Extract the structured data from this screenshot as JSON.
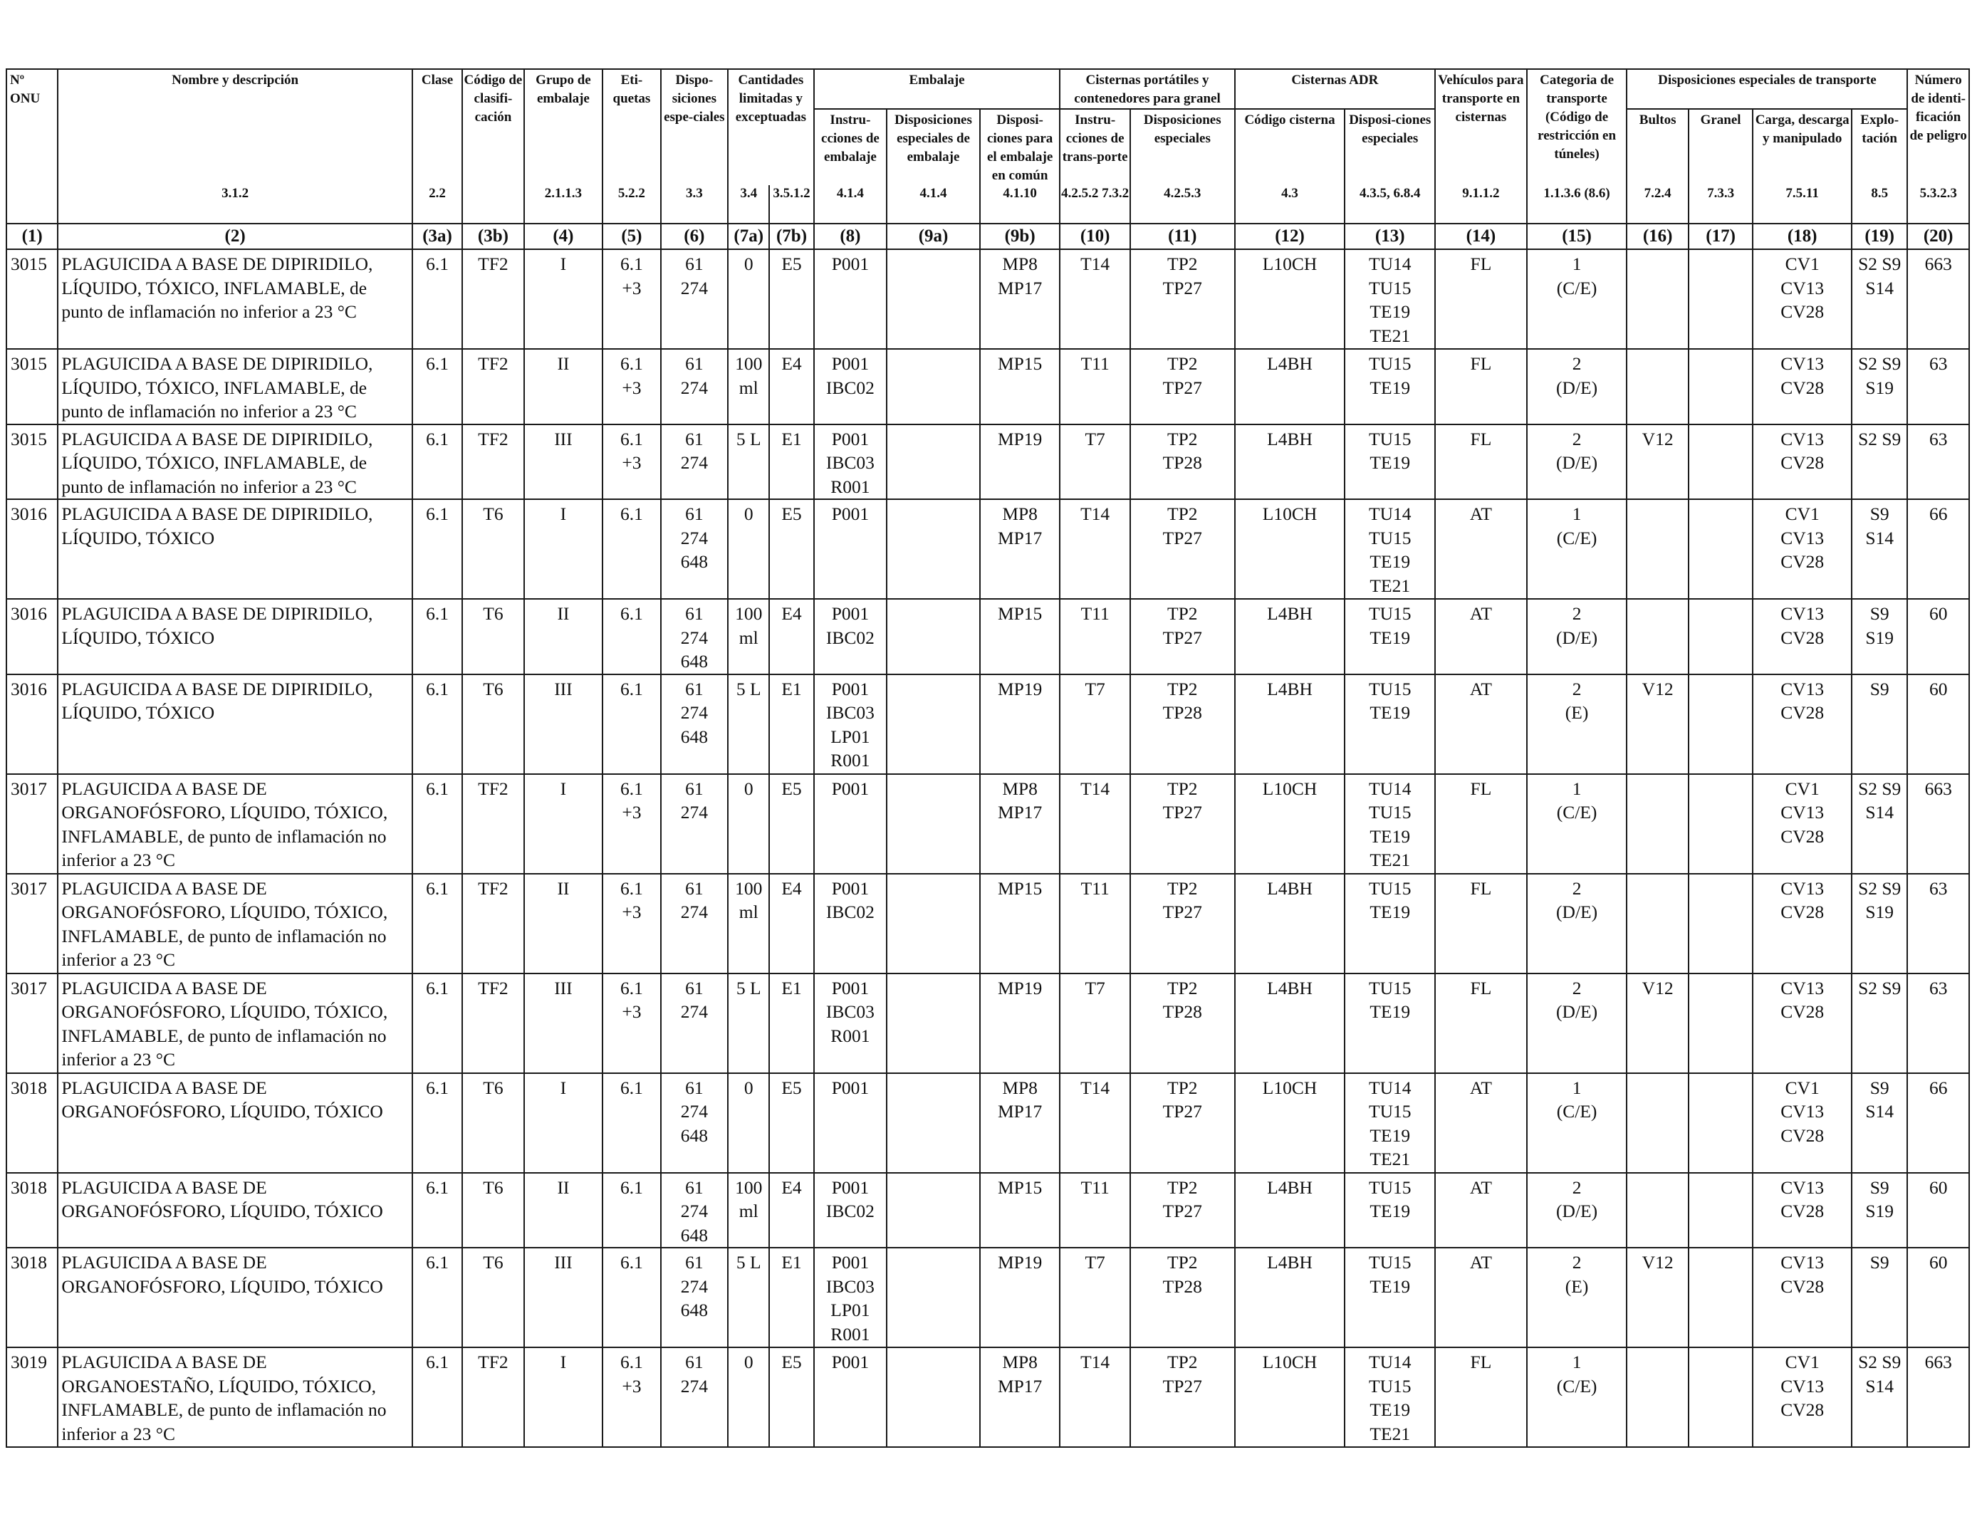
{
  "headers": {
    "onu": "Nº ONU",
    "name": "Nombre y descripción",
    "clase": "Clase",
    "codigo": "Código de clasifi-cación",
    "grupo": "Grupo de embalaje",
    "etiquetas": "Eti-quetas",
    "disposiciones": "Dispo-siciones espe-ciales",
    "cantidades": "Cantidades limitadas y exceptuadas",
    "embalaje": "Embalaje",
    "instrucciones": "Instru-cciones de embalaje",
    "disp_esp_emb": "Disposiciones especiales de embalaje",
    "disp_comun": "Disposi-ciones para el embalaje en común",
    "cisternas_port": "Cisternas portátiles y contenedores para granel",
    "instr_transporte": "Instru-cciones de trans-porte",
    "disp_esp": "Disposiciones especiales",
    "cisternas_adr": "Cisternas ADR",
    "codigo_cisterna": "Código cisterna",
    "disp_cist": "Disposi-ciones especiales",
    "vehiculos": "Vehículos para transporte en cisternas",
    "categoria": "Categoria de transporte (Código de restricción en túneles)",
    "disp_transp": "Disposiciones especiales de transporte",
    "bultos": "Bultos",
    "granel": "Granel",
    "carga": "Carga, descarga y manipulado",
    "explotacion": "Explo-tación",
    "numero": "Número de identi-ficación de peligro"
  },
  "refs": {
    "name": "3.1.2",
    "clase": "2.2",
    "grupo": "2.1.1.3",
    "etiquetas": "5.2.2",
    "disposiciones": "3.3",
    "cant_a": "3.4",
    "cant_b": "3.5.1.2",
    "instr": "4.1.4",
    "disp_esp_emb": "4.1.4",
    "disp_comun": "4.1.10",
    "instr_transp": "4.2.5.2 7.3.2",
    "disp_esp": "4.2.5.3",
    "codigo_cisterna": "4.3",
    "disp_cist": "4.3.5, 6.8.4",
    "vehiculos": "9.1.1.2",
    "categoria": "1.1.3.6 (8.6)",
    "bultos": "7.2.4",
    "granel": "7.3.3",
    "carga": "7.5.11",
    "explotacion": "8.5",
    "numero": "5.3.2.3"
  },
  "column_numbers": [
    "(1)",
    "(2)",
    "(3a)",
    "(3b)",
    "(4)",
    "(5)",
    "(6)",
    "(7a)",
    "(7b)",
    "(8)",
    "(9a)",
    "(9b)",
    "(10)",
    "(11)",
    "(12)",
    "(13)",
    "(14)",
    "(15)",
    "(16)",
    "(17)",
    "(18)",
    "(19)",
    "(20)"
  ],
  "rows": [
    [
      "3015",
      "PLAGUICIDA A BASE DE DIPIRIDILO, LÍQUIDO, TÓXICO, INFLAMABLE, de punto de inflamación no inferior a 23 °C",
      "6.1",
      "TF2",
      "I",
      "6.1\n+3",
      "61\n274",
      "0",
      "E5",
      "P001",
      "",
      "MP8\nMP17",
      "T14",
      "TP2\nTP27",
      "L10CH",
      "TU14\nTU15\nTE19\nTE21",
      "FL",
      "1\n(C/E)",
      "",
      "",
      "CV1\nCV13\nCV28",
      "S2 S9\nS14",
      "663"
    ],
    [
      "3015",
      "PLAGUICIDA A BASE DE DIPIRIDILO, LÍQUIDO, TÓXICO, INFLAMABLE, de punto de inflamación no inferior a 23 °C",
      "6.1",
      "TF2",
      "II",
      "6.1\n+3",
      "61\n274",
      "100\nml",
      "E4",
      "P001\nIBC02",
      "",
      "MP15",
      "T11",
      "TP2\nTP27",
      "L4BH",
      "TU15\nTE19",
      "FL",
      "2\n(D/E)",
      "",
      "",
      "CV13\nCV28",
      "S2 S9\nS19",
      "63"
    ],
    [
      "3015",
      "PLAGUICIDA A BASE DE DIPIRIDILO, LÍQUIDO, TÓXICO, INFLAMABLE, de punto de inflamación no inferior a 23 °C",
      "6.1",
      "TF2",
      "III",
      "6.1\n+3",
      "61\n274",
      "5 L",
      "E1",
      "P001\nIBC03\nR001",
      "",
      "MP19",
      "T7",
      "TP2\nTP28",
      "L4BH",
      "TU15\nTE19",
      "FL",
      "2\n(D/E)",
      "V12",
      "",
      "CV13\nCV28",
      "S2 S9",
      "63"
    ],
    [
      "3016",
      "PLAGUICIDA A BASE DE DIPIRIDILO, LÍQUIDO, TÓXICO",
      "6.1",
      "T6",
      "I",
      "6.1",
      "61\n274\n648",
      "0",
      "E5",
      "P001",
      "",
      "MP8\nMP17",
      "T14",
      "TP2\nTP27",
      "L10CH",
      "TU14\nTU15\nTE19\nTE21",
      "AT",
      "1\n(C/E)",
      "",
      "",
      "CV1\nCV13\nCV28",
      "S9\nS14",
      "66"
    ],
    [
      "3016",
      "PLAGUICIDA A BASE DE DIPIRIDILO, LÍQUIDO, TÓXICO",
      "6.1",
      "T6",
      "II",
      "6.1",
      "61\n274\n648",
      "100\nml",
      "E4",
      "P001\nIBC02",
      "",
      "MP15",
      "T11",
      "TP2\nTP27",
      "L4BH",
      "TU15\nTE19",
      "AT",
      "2\n(D/E)",
      "",
      "",
      "CV13\nCV28",
      "S9\nS19",
      "60"
    ],
    [
      "3016",
      "PLAGUICIDA A BASE DE DIPIRIDILO, LÍQUIDO, TÓXICO",
      "6.1",
      "T6",
      "III",
      "6.1",
      "61\n274\n648",
      "5 L",
      "E1",
      "P001\nIBC03\nLP01\nR001",
      "",
      "MP19",
      "T7",
      "TP2\nTP28",
      "L4BH",
      "TU15\nTE19",
      "AT",
      "2\n(E)",
      "V12",
      "",
      "CV13\nCV28",
      "S9",
      "60"
    ],
    [
      "3017",
      "PLAGUICIDA A BASE DE ORGANOFÓSFORO, LÍQUIDO, TÓXICO, INFLAMABLE, de punto de inflamación no inferior a 23 °C",
      "6.1",
      "TF2",
      "I",
      "6.1\n+3",
      "61\n274",
      "0",
      "E5",
      "P001",
      "",
      "MP8\nMP17",
      "T14",
      "TP2\nTP27",
      "L10CH",
      "TU14\nTU15\nTE19\nTE21",
      "FL",
      "1\n(C/E)",
      "",
      "",
      "CV1\nCV13\nCV28",
      "S2 S9\nS14",
      "663"
    ],
    [
      "3017",
      "PLAGUICIDA A BASE DE ORGANOFÓSFORO, LÍQUIDO, TÓXICO, INFLAMABLE, de punto de inflamación no inferior a 23 °C",
      "6.1",
      "TF2",
      "II",
      "6.1\n+3",
      "61\n274",
      "100\nml",
      "E4",
      "P001\nIBC02",
      "",
      "MP15",
      "T11",
      "TP2\nTP27",
      "L4BH",
      "TU15\nTE19",
      "FL",
      "2\n(D/E)",
      "",
      "",
      "CV13\nCV28",
      "S2 S9\nS19",
      "63"
    ],
    [
      "3017",
      "PLAGUICIDA A BASE DE ORGANOFÓSFORO, LÍQUIDO, TÓXICO, INFLAMABLE, de punto de inflamación no inferior a 23 °C",
      "6.1",
      "TF2",
      "III",
      "6.1\n+3",
      "61\n274",
      "5 L",
      "E1",
      "P001\nIBC03\nR001",
      "",
      "MP19",
      "T7",
      "TP2\nTP28",
      "L4BH",
      "TU15\nTE19",
      "FL",
      "2\n(D/E)",
      "V12",
      "",
      "CV13\nCV28",
      "S2 S9",
      "63"
    ],
    [
      "3018",
      "PLAGUICIDA A BASE DE ORGANOFÓSFORO, LÍQUIDO, TÓXICO",
      "6.1",
      "T6",
      "I",
      "6.1",
      "61\n274\n648",
      "0",
      "E5",
      "P001",
      "",
      "MP8\nMP17",
      "T14",
      "TP2\nTP27",
      "L10CH",
      "TU14\nTU15\nTE19\nTE21",
      "AT",
      "1\n(C/E)",
      "",
      "",
      "CV1\nCV13\nCV28",
      "S9\nS14",
      "66"
    ],
    [
      "3018",
      "PLAGUICIDA A BASE DE ORGANOFÓSFORO, LÍQUIDO, TÓXICO",
      "6.1",
      "T6",
      "II",
      "6.1",
      "61\n274\n648",
      "100\nml",
      "E4",
      "P001\nIBC02",
      "",
      "MP15",
      "T11",
      "TP2\nTP27",
      "L4BH",
      "TU15\nTE19",
      "AT",
      "2\n(D/E)",
      "",
      "",
      "CV13\nCV28",
      "S9\nS19",
      "60"
    ],
    [
      "3018",
      "PLAGUICIDA A BASE DE ORGANOFÓSFORO, LÍQUIDO, TÓXICO",
      "6.1",
      "T6",
      "III",
      "6.1",
      "61\n274\n648",
      "5 L",
      "E1",
      "P001\nIBC03\nLP01\nR001",
      "",
      "MP19",
      "T7",
      "TP2\nTP28",
      "L4BH",
      "TU15\nTE19",
      "AT",
      "2\n(E)",
      "V12",
      "",
      "CV13\nCV28",
      "S9",
      "60"
    ],
    [
      "3019",
      "PLAGUICIDA A BASE DE ORGANOESTAÑO, LÍQUIDO, TÓXICO, INFLAMABLE, de punto de inflamación no inferior a 23 °C",
      "6.1",
      "TF2",
      "I",
      "6.1\n+3",
      "61\n274",
      "0",
      "E5",
      "P001",
      "",
      "MP8\nMP17",
      "T14",
      "TP2\nTP27",
      "L10CH",
      "TU14\nTU15\nTE19\nTE21",
      "FL",
      "1\n(C/E)",
      "",
      "",
      "CV1\nCV13\nCV28",
      "S2 S9\nS14",
      "663"
    ]
  ]
}
